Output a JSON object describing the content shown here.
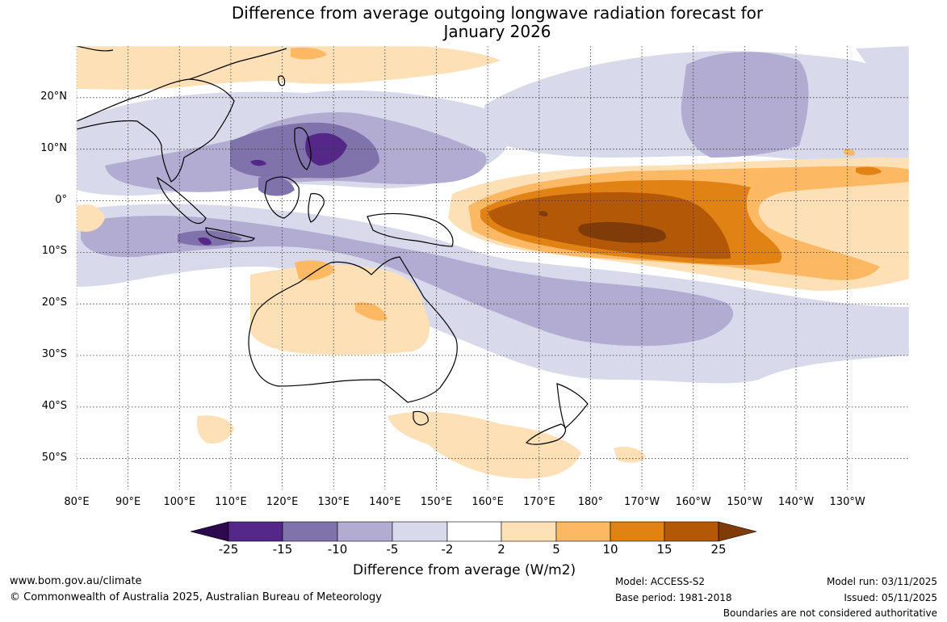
{
  "title": {
    "line1": "Difference from average outgoing longwave radiation forecast for",
    "line2": "January 2026"
  },
  "map": {
    "lon_labels": [
      "80°E",
      "90°E",
      "100°E",
      "110°E",
      "120°E",
      "130°E",
      "140°E",
      "150°E",
      "160°E",
      "170°E",
      "180°",
      "170°W",
      "160°W",
      "150°W",
      "140°W",
      "130°W"
    ],
    "lat_labels": [
      "20°N",
      "10°N",
      "0°",
      "10°S",
      "20°S",
      "30°S",
      "40°S",
      "50°S"
    ],
    "extent": {
      "lon_min": 80,
      "lon_max": 242,
      "lat_min": -56,
      "lat_max": 30
    }
  },
  "colorbar": {
    "title": "Difference from average (W/m2)",
    "labels": [
      "-25",
      "-15",
      "-10",
      "-5",
      "-2",
      "2",
      "5",
      "10",
      "15",
      "25"
    ],
    "colors": {
      "lt_-25": "#2d0a4e",
      "-25_-15": "#542788",
      "-15_-10": "#8073ac",
      "-10_-5": "#b2abd2",
      "-5_-2": "#d8daeb",
      "-2_2": "#ffffff",
      "2_5": "#fee0b6",
      "5_10": "#fdb863",
      "10_15": "#e08214",
      "15_25": "#b35806",
      "gt_25": "#7f3b08"
    }
  },
  "footer": {
    "website": "www.bom.gov.au/climate",
    "copyright": "© Commonwealth of Australia 2025, Australian Bureau of Meteorology",
    "model": "Model: ACCESS-S2",
    "base_period": "Base period: 1981-2018",
    "model_run": "Model run: 03/11/2025",
    "issued": "Issued: 05/11/2025",
    "disclaimer": "Boundaries are not considered authoritative"
  }
}
